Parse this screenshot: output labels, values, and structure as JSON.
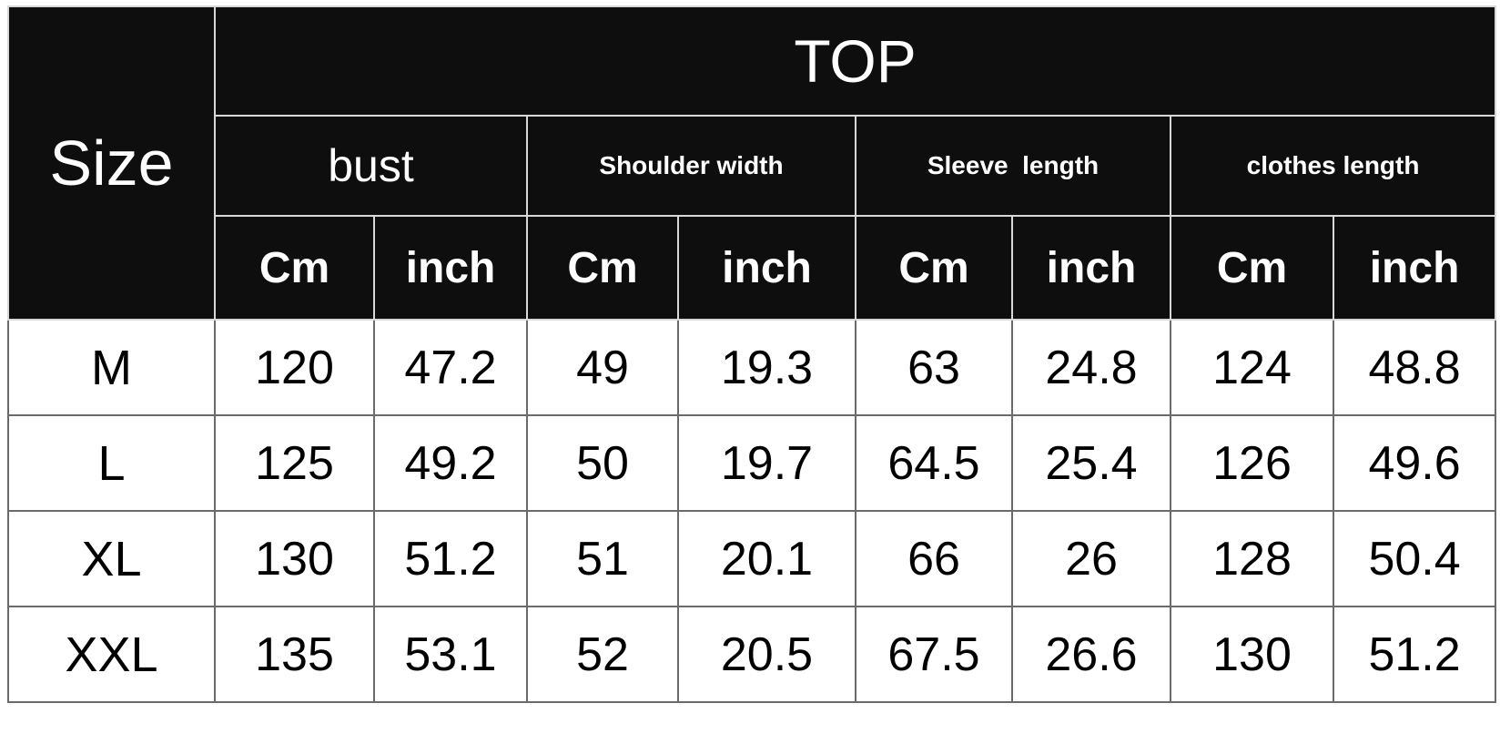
{
  "table": {
    "size_header": "Size",
    "section_header": "TOP",
    "groups": [
      "bust",
      "Shoulder width",
      "Sleeve  length",
      "clothes length"
    ],
    "units": [
      "Cm",
      "inch"
    ],
    "rows": [
      {
        "size": "M",
        "values": [
          "120",
          "47.2",
          "49",
          "19.3",
          "63",
          "24.8",
          "124",
          "48.8"
        ]
      },
      {
        "size": "L",
        "values": [
          "125",
          "49.2",
          "50",
          "19.7",
          "64.5",
          "25.4",
          "126",
          "49.6"
        ]
      },
      {
        "size": "XL",
        "values": [
          "130",
          "51.2",
          "51",
          "20.1",
          "66",
          "26",
          "128",
          "50.4"
        ]
      },
      {
        "size": "XXL",
        "values": [
          "135",
          "53.1",
          "52",
          "20.5",
          "67.5",
          "26.6",
          "130",
          "51.2"
        ]
      }
    ]
  }
}
